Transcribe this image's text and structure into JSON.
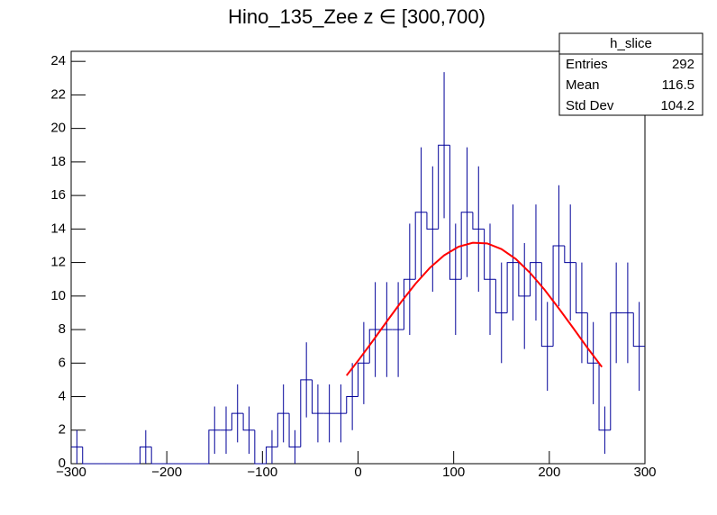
{
  "chart_data": {
    "type": "histogram",
    "title": "Hino_135_Zee z  ∈ [300,700)",
    "bins": [
      -300,
      -288,
      -276,
      -264,
      -252,
      -240,
      -228,
      -216,
      -204,
      -192,
      -180,
      -168,
      -156,
      -144,
      -132,
      -120,
      -108,
      -96,
      -84,
      -72,
      -60,
      -48,
      -36,
      -24,
      -12,
      0,
      12,
      24,
      36,
      48,
      60,
      72,
      84,
      96,
      108,
      120,
      132,
      144,
      156,
      168,
      180,
      192,
      204,
      216,
      228,
      240,
      252,
      264,
      276,
      288,
      300
    ],
    "values": [
      1,
      0,
      0,
      0,
      0,
      0,
      1,
      0,
      0,
      0,
      0,
      0,
      2,
      2,
      3,
      2,
      0,
      1,
      3,
      1,
      5,
      3,
      3,
      3,
      4,
      6,
      8,
      8,
      8,
      11,
      15,
      14,
      19,
      11,
      15,
      14,
      11,
      9,
      12,
      10,
      12,
      7,
      13,
      12,
      9,
      6,
      2,
      9,
      9,
      7
    ],
    "errors": [
      1,
      0,
      0,
      0,
      0,
      0,
      1,
      0,
      0,
      0,
      0,
      0,
      1.41,
      1.41,
      1.73,
      1.41,
      0,
      1,
      1.73,
      1,
      2.24,
      1.73,
      1.73,
      1.73,
      2,
      2.45,
      2.83,
      2.83,
      2.83,
      3.32,
      3.87,
      3.74,
      4.36,
      3.32,
      3.87,
      3.74,
      3.32,
      3,
      3.46,
      3.16,
      3.46,
      2.65,
      3.61,
      3.46,
      3,
      2.45,
      1.41,
      3,
      3,
      2.65
    ],
    "color": "#000099",
    "fit": {
      "color": "#ff0000",
      "x": [
        -12,
        0,
        15,
        30,
        45,
        60,
        75,
        90,
        105,
        120,
        135,
        150,
        165,
        180,
        195,
        210,
        225,
        240,
        255
      ],
      "y": [
        5.26,
        6.14,
        7.29,
        8.48,
        9.64,
        10.73,
        11.68,
        12.43,
        12.94,
        13.18,
        13.14,
        12.8,
        12.21,
        11.38,
        10.38,
        9.26,
        8.09,
        6.9,
        5.77
      ]
    },
    "xlim": [
      -300,
      300
    ],
    "xticks": [
      {
        "value": -300,
        "label": "−300"
      },
      {
        "value": -200,
        "label": "−200"
      },
      {
        "value": -100,
        "label": "−100"
      },
      0,
      100,
      200,
      300
    ],
    "ylim": [
      0,
      24.6
    ],
    "yticks": [
      0,
      2,
      4,
      6,
      8,
      10,
      12,
      14,
      16,
      18,
      20,
      22,
      24
    ],
    "stats": {
      "name": "h_slice",
      "rows": [
        {
          "label": "Entries",
          "value": 292
        },
        {
          "label": "Mean",
          "value": 116.5
        },
        {
          "label": "Std Dev",
          "value": 104.2
        }
      ]
    }
  }
}
